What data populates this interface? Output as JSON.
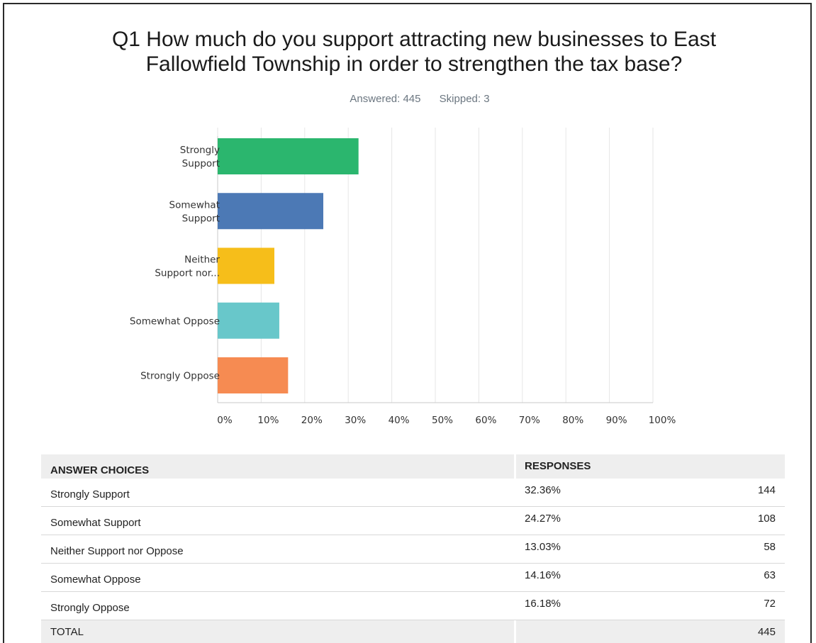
{
  "title_line1": "Q1 How much do you support attracting new businesses to East",
  "title_line2": "Fallowfield Township in order to strengthen the tax base?",
  "answered": "Answered: 445",
  "skipped": "Skipped: 3",
  "chart_data": {
    "type": "bar",
    "orientation": "horizontal",
    "categories": [
      [
        "Strongly",
        "Support"
      ],
      [
        "Somewhat",
        "Support"
      ],
      [
        "Neither",
        "Support nor..."
      ],
      [
        "Somewhat Oppose"
      ],
      [
        "Strongly Oppose"
      ]
    ],
    "values": [
      32.36,
      24.27,
      13.03,
      14.16,
      16.18
    ],
    "colors": [
      "#2bb66e",
      "#4c79b5",
      "#f6be1a",
      "#68c7ca",
      "#f68b52"
    ],
    "xlim": [
      0,
      100
    ],
    "xticks": [
      "0%",
      "10%",
      "20%",
      "30%",
      "40%",
      "50%",
      "60%",
      "70%",
      "80%",
      "90%",
      "100%"
    ],
    "grid": true
  },
  "table": {
    "headers": [
      "ANSWER CHOICES",
      "RESPONSES",
      ""
    ],
    "rows": [
      {
        "choice": "Strongly Support",
        "percent": "32.36%",
        "count": "144"
      },
      {
        "choice": "Somewhat Support",
        "percent": "24.27%",
        "count": "108"
      },
      {
        "choice": "Neither Support nor Oppose",
        "percent": "13.03%",
        "count": "58"
      },
      {
        "choice": "Somewhat Oppose",
        "percent": "14.16%",
        "count": "63"
      },
      {
        "choice": "Strongly Oppose",
        "percent": "16.18%",
        "count": "72"
      }
    ],
    "total_label": "TOTAL",
    "total_value": "445"
  }
}
